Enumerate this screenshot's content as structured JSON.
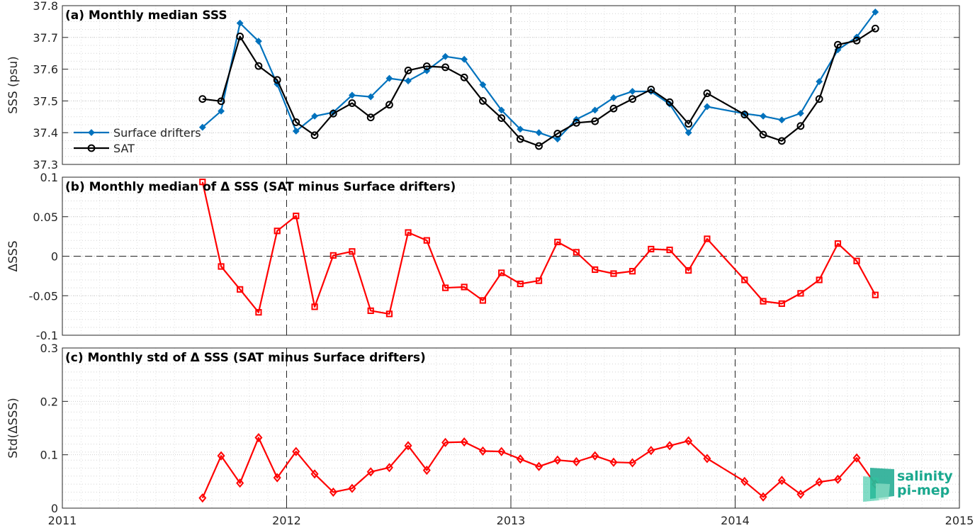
{
  "x_axis": {
    "ticks": [
      "2011",
      "2012",
      "2013",
      "2014",
      "2015"
    ],
    "range": [
      2011,
      2015
    ]
  },
  "chart_data": [
    {
      "type": "line",
      "title": "(a) Monthly median SSS",
      "ylabel": "SSS (psu)",
      "ylim": [
        37.3,
        37.8
      ],
      "yticks": [
        "37.3",
        "37.4",
        "37.5",
        "37.6",
        "37.7",
        "37.8"
      ],
      "grid": true,
      "legend_placement": "left",
      "series": [
        {
          "name": "Surface drifters",
          "color": "#0072bd",
          "marker": "diamond-filled",
          "x": [
            2011.625,
            2011.708,
            2011.792,
            2011.875,
            2011.958,
            2012.042,
            2012.125,
            2012.208,
            2012.292,
            2012.375,
            2012.458,
            2012.542,
            2012.625,
            2012.708,
            2012.792,
            2012.875,
            2012.958,
            2013.042,
            2013.125,
            2013.208,
            2013.292,
            2013.375,
            2013.458,
            2013.542,
            2013.625,
            2013.708,
            2013.792,
            2013.875,
            2014.042,
            2014.125,
            2014.208,
            2014.292,
            2014.375,
            2014.458,
            2014.542,
            2014.625
          ],
          "y": [
            37.417,
            37.468,
            37.745,
            37.688,
            37.553,
            37.405,
            37.452,
            37.464,
            37.518,
            37.513,
            37.571,
            37.563,
            37.595,
            37.64,
            37.631,
            37.551,
            37.471,
            37.411,
            37.4,
            37.38,
            37.442,
            37.471,
            37.51,
            37.53,
            37.53,
            37.49,
            37.4,
            37.482,
            37.46,
            37.452,
            37.44,
            37.461,
            37.561,
            37.661,
            37.701,
            37.78
          ]
        },
        {
          "name": "SAT",
          "color": "#000000",
          "marker": "circle-open",
          "x": [
            2011.625,
            2011.708,
            2011.792,
            2011.875,
            2011.958,
            2012.042,
            2012.125,
            2012.208,
            2012.292,
            2012.375,
            2012.458,
            2012.542,
            2012.625,
            2012.708,
            2012.792,
            2012.875,
            2012.958,
            2013.042,
            2013.125,
            2013.208,
            2013.292,
            2013.375,
            2013.458,
            2013.542,
            2013.625,
            2013.708,
            2013.792,
            2013.875,
            2014.042,
            2014.125,
            2014.208,
            2014.292,
            2014.375,
            2014.458,
            2014.542,
            2014.625
          ],
          "y": [
            37.506,
            37.499,
            37.703,
            37.61,
            37.566,
            37.433,
            37.392,
            37.46,
            37.493,
            37.448,
            37.488,
            37.596,
            37.609,
            37.606,
            37.574,
            37.5,
            37.446,
            37.38,
            37.358,
            37.397,
            37.431,
            37.436,
            37.476,
            37.506,
            37.536,
            37.496,
            37.428,
            37.524,
            37.457,
            37.394,
            37.374,
            37.421,
            37.506,
            37.677,
            37.69,
            37.728
          ]
        }
      ]
    },
    {
      "type": "line",
      "title": "(b) Monthly median of Δ SSS (SAT minus Surface drifters)",
      "ylabel": "ΔSSS",
      "ylim": [
        -0.1,
        0.1
      ],
      "yticks": [
        "-0.1",
        "-0.05",
        "0",
        "0.05",
        "0.1"
      ],
      "grid": true,
      "reference_line": 0,
      "series": [
        {
          "color": "#ff0000",
          "marker": "square-open",
          "x": [
            2011.625,
            2011.708,
            2011.792,
            2011.875,
            2011.958,
            2012.042,
            2012.125,
            2012.208,
            2012.292,
            2012.375,
            2012.458,
            2012.542,
            2012.625,
            2012.708,
            2012.792,
            2012.875,
            2012.958,
            2013.042,
            2013.125,
            2013.208,
            2013.292,
            2013.375,
            2013.458,
            2013.542,
            2013.625,
            2013.708,
            2013.792,
            2013.875,
            2014.042,
            2014.125,
            2014.208,
            2014.292,
            2014.375,
            2014.458,
            2014.542,
            2014.625
          ],
          "y": [
            0.094,
            -0.013,
            -0.042,
            -0.071,
            0.032,
            0.051,
            -0.064,
            0.001,
            0.006,
            -0.069,
            -0.073,
            0.03,
            0.02,
            -0.04,
            -0.039,
            -0.056,
            -0.021,
            -0.035,
            -0.031,
            0.018,
            0.005,
            -0.017,
            -0.022,
            -0.019,
            0.009,
            0.008,
            -0.018,
            0.022,
            -0.03,
            -0.057,
            -0.06,
            -0.047,
            -0.03,
            0.016,
            -0.006,
            -0.049
          ]
        }
      ]
    },
    {
      "type": "line",
      "title": "(c) Monthly std of Δ SSS (SAT minus Surface drifters)",
      "ylabel": "Std(ΔSSS)",
      "ylim": [
        0,
        0.3
      ],
      "yticks": [
        "0",
        "0.1",
        "0.2",
        "0.3"
      ],
      "grid": true,
      "series": [
        {
          "color": "#ff0000",
          "marker": "diamond-open",
          "x": [
            2011.625,
            2011.708,
            2011.792,
            2011.875,
            2011.958,
            2012.042,
            2012.125,
            2012.208,
            2012.292,
            2012.375,
            2012.458,
            2012.542,
            2012.625,
            2012.708,
            2012.792,
            2012.875,
            2012.958,
            2013.042,
            2013.125,
            2013.208,
            2013.292,
            2013.375,
            2013.458,
            2013.542,
            2013.625,
            2013.708,
            2013.792,
            2013.875,
            2014.042,
            2014.125,
            2014.208,
            2014.292,
            2014.375,
            2014.458,
            2014.542,
            2014.625
          ],
          "y": [
            0.019,
            0.098,
            0.047,
            0.132,
            0.057,
            0.106,
            0.064,
            0.03,
            0.037,
            0.068,
            0.076,
            0.117,
            0.071,
            0.123,
            0.124,
            0.107,
            0.106,
            0.092,
            0.078,
            0.09,
            0.087,
            0.098,
            0.086,
            0.085,
            0.108,
            0.117,
            0.126,
            0.093,
            0.05,
            0.021,
            0.052,
            0.026,
            0.049,
            0.054,
            0.094,
            0.045
          ]
        }
      ]
    }
  ],
  "logo": {
    "line1": "salinity",
    "line2": "pi-mep",
    "color": "#1aa88e"
  }
}
